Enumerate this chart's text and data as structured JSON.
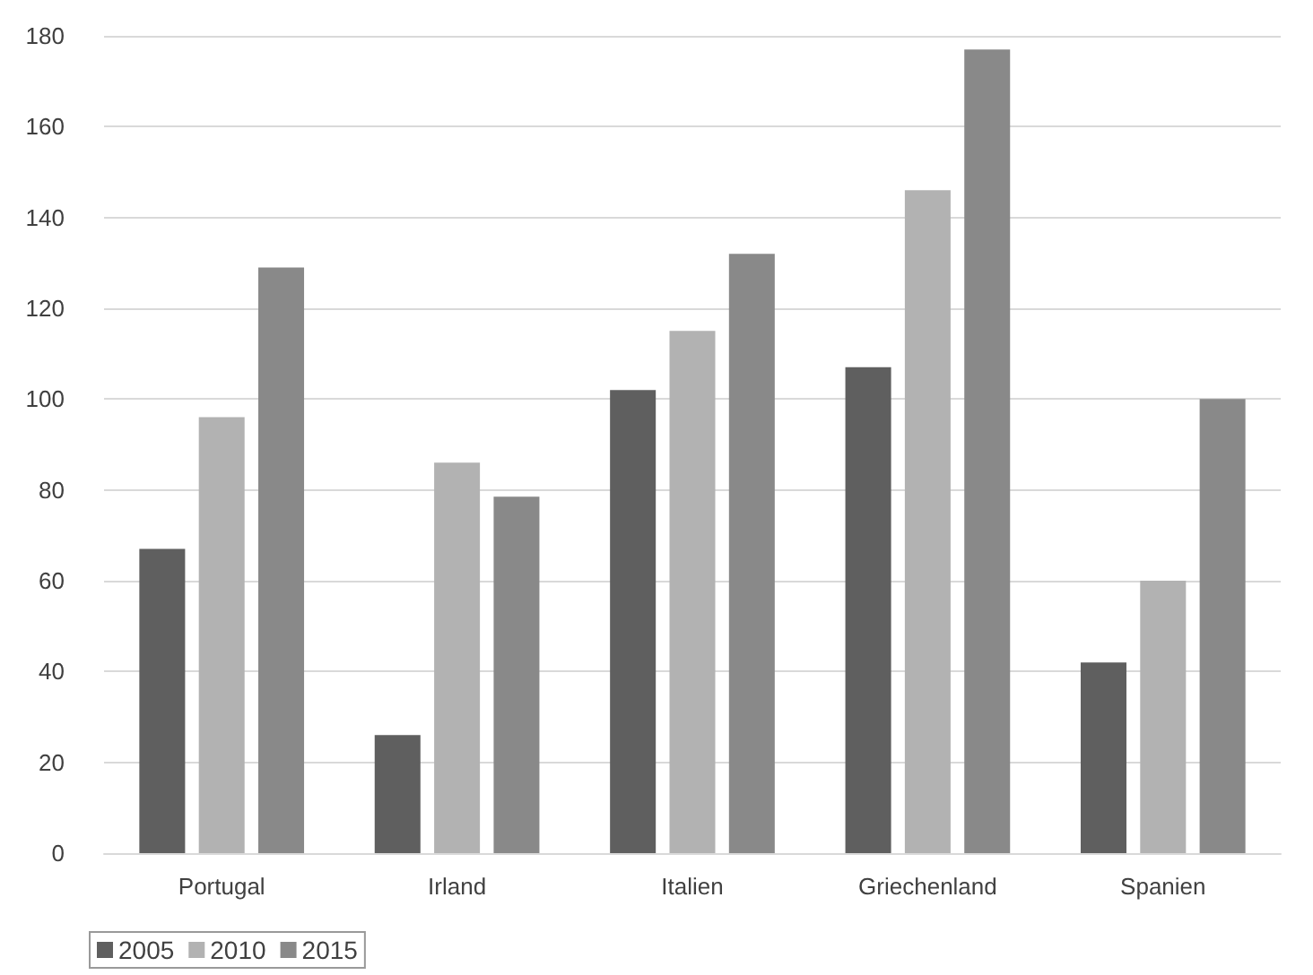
{
  "chart_data": {
    "type": "bar",
    "categories": [
      "Portugal",
      "Irland",
      "Italien",
      "Griechenland",
      "Spanien"
    ],
    "series": [
      {
        "name": "2005",
        "color": "#5f5f5f",
        "values": [
          67,
          26,
          102,
          107,
          42
        ]
      },
      {
        "name": "2010",
        "color": "#b2b2b2",
        "values": [
          96,
          86,
          115,
          146,
          60
        ]
      },
      {
        "name": "2015",
        "color": "#898989",
        "values": [
          129,
          78.5,
          132,
          177,
          100
        ]
      }
    ],
    "ylim": [
      0,
      180
    ],
    "yticks": [
      0,
      20,
      40,
      60,
      80,
      100,
      120,
      140,
      160,
      180
    ],
    "grid": "y",
    "legend": "bottom left"
  }
}
